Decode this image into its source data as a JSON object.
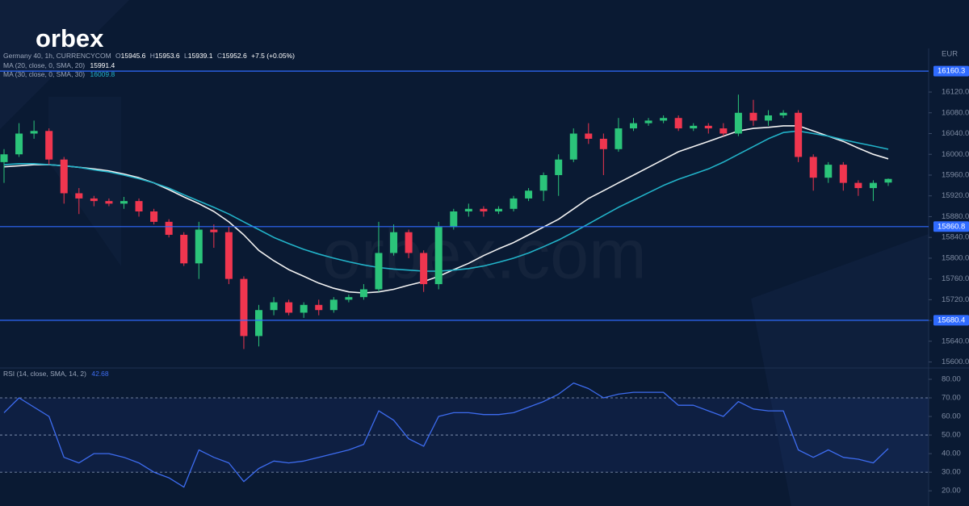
{
  "logo": "orbex",
  "watermark": "orbex.com",
  "chart_data": [
    {
      "type": "candlestick",
      "title": "Germany 40, 1h, CURRENCYCOM",
      "ohlc_keys": [
        "O",
        "H",
        "L",
        "C"
      ],
      "change": "+7.5 (+0.05%)",
      "currency": "EUR",
      "up_color": "#2bc47a",
      "down_color": "#f0364f",
      "open": [
        15985,
        16000,
        16040,
        16045,
        15990,
        15925,
        15915,
        15910,
        15905,
        15910,
        15890,
        15870,
        15845,
        15790,
        15855,
        15850,
        15760,
        15650,
        15700,
        15715,
        15695,
        15710,
        15700,
        15720,
        15725,
        15740,
        15810,
        15850,
        15810,
        15750,
        15860,
        15890,
        15895,
        15890,
        15895,
        15915,
        15930,
        15960,
        15990,
        16040,
        16030,
        16010,
        16050,
        16060,
        16065,
        16070,
        16050,
        16055,
        16050,
        16040,
        16080,
        16065,
        16075,
        16080,
        15995,
        15955,
        15980,
        15945,
        15935,
        15945.6
      ],
      "high": [
        16010,
        16060,
        16065,
        16050,
        15995,
        15935,
        15920,
        15915,
        15918,
        15915,
        15895,
        15875,
        15850,
        15870,
        15865,
        15860,
        15765,
        15710,
        15725,
        15720,
        15715,
        15720,
        15725,
        15730,
        15750,
        15870,
        15865,
        15855,
        15815,
        15870,
        15895,
        15905,
        15900,
        15900,
        15920,
        15935,
        15965,
        16000,
        16050,
        16060,
        16040,
        16070,
        16070,
        16070,
        16075,
        16075,
        16060,
        16060,
        16060,
        16115,
        16105,
        16085,
        16085,
        16085,
        16000,
        15985,
        15985,
        15950,
        15950,
        15953.6
      ],
      "low": [
        15945,
        15995,
        16030,
        15980,
        15905,
        15885,
        15900,
        15900,
        15895,
        15880,
        15865,
        15840,
        15785,
        15760,
        15820,
        15750,
        15625,
        15630,
        15690,
        15690,
        15685,
        15690,
        15695,
        15715,
        15720,
        15735,
        15805,
        15800,
        15735,
        15740,
        15855,
        15880,
        15880,
        15885,
        15890,
        15910,
        15910,
        15920,
        15985,
        16020,
        15960,
        16005,
        16045,
        16055,
        16060,
        16045,
        16045,
        16040,
        16035,
        16035,
        16055,
        16055,
        16070,
        15985,
        15930,
        15945,
        15930,
        15920,
        15910,
        15939.1
      ],
      "close": [
        16000,
        16040,
        16045,
        15990,
        15925,
        15915,
        15910,
        15905,
        15910,
        15890,
        15870,
        15845,
        15790,
        15855,
        15850,
        15760,
        15650,
        15700,
        15715,
        15695,
        15710,
        15700,
        15720,
        15725,
        15740,
        15810,
        15850,
        15810,
        15750,
        15860,
        15890,
        15895,
        15890,
        15895,
        15915,
        15930,
        15960,
        15990,
        16040,
        16030,
        16010,
        16050,
        16060,
        16065,
        16070,
        16050,
        16055,
        16050,
        16040,
        16080,
        16065,
        16075,
        16080,
        15995,
        15955,
        15980,
        15945,
        15935,
        15945,
        15952.6
      ],
      "series": [
        {
          "name": "MA (20, close, 0, SMA, 20)",
          "color": "#f2f2f2",
          "values": [
            15976,
            15978,
            15980,
            15980,
            15978,
            15975,
            15972,
            15968,
            15962,
            15955,
            15945,
            15932,
            15918,
            15905,
            15890,
            15870,
            15845,
            15815,
            15795,
            15778,
            15765,
            15752,
            15742,
            15735,
            15733,
            15735,
            15740,
            15748,
            15755,
            15765,
            15778,
            15790,
            15805,
            15818,
            15830,
            15845,
            15860,
            15875,
            15895,
            15915,
            15930,
            15945,
            15960,
            15975,
            15990,
            16005,
            16015,
            16025,
            16035,
            16045,
            16050,
            16052,
            16055,
            16055,
            16045,
            16035,
            16025,
            16012,
            16000,
            15991.4
          ]
        },
        {
          "name": "MA (30, close, 0, SMA, 30)",
          "color": "#22b3c9",
          "values": [
            15980,
            15982,
            15982,
            15980,
            15978,
            15975,
            15970,
            15966,
            15960,
            15953,
            15945,
            15935,
            15922,
            15910,
            15898,
            15885,
            15870,
            15855,
            15840,
            15828,
            15817,
            15808,
            15800,
            15793,
            15787,
            15782,
            15779,
            15777,
            15775,
            15775,
            15777,
            15780,
            15785,
            15792,
            15800,
            15810,
            15822,
            15835,
            15850,
            15866,
            15882,
            15898,
            15912,
            15926,
            15940,
            15952,
            15962,
            15972,
            15985,
            16000,
            16015,
            16030,
            16042,
            16045,
            16040,
            16035,
            16028,
            16022,
            16016,
            16009.8
          ]
        }
      ],
      "levels": [
        16160.3,
        15860.8,
        15680.4
      ],
      "level_color": "#2f6bff",
      "ylim": [
        15590,
        16204
      ],
      "yticks": [
        {
          "value": 16120,
          "label": "16120.0"
        },
        {
          "value": 16080,
          "label": "16080.0"
        },
        {
          "value": 16040,
          "label": "16040.0"
        },
        {
          "value": 16000,
          "label": "16000.0"
        },
        {
          "value": 15960,
          "label": "15960.0"
        },
        {
          "value": 15920,
          "label": "15920.0"
        },
        {
          "value": 15880,
          "label": "15880.0"
        },
        {
          "value": 15840,
          "label": "15840.0"
        },
        {
          "value": 15800,
          "label": "15800.0"
        },
        {
          "value": 15760,
          "label": "15760.0"
        },
        {
          "value": 15720,
          "label": "15720.0"
        },
        {
          "value": 15680,
          "label": "15680.0"
        },
        {
          "value": 15640,
          "label": "15640.0"
        },
        {
          "value": 15600,
          "label": "15600.0"
        }
      ]
    },
    {
      "type": "line",
      "series": [
        {
          "name": "RSI (14, close, SMA, 14, 2)",
          "color": "#3d6cf0",
          "values": [
            62,
            70,
            65,
            60,
            38,
            35,
            40,
            40,
            38,
            35,
            30,
            27,
            22,
            42,
            38,
            35,
            25,
            32,
            36,
            35,
            36,
            38,
            40,
            42,
            45,
            63,
            58,
            48,
            44,
            60,
            62,
            62,
            61,
            61,
            62,
            65,
            68,
            72,
            78,
            75,
            70,
            72,
            73,
            73,
            73,
            66,
            66,
            63,
            60,
            68,
            64,
            63,
            63,
            42,
            38,
            42,
            38,
            37,
            35,
            42.68
          ]
        }
      ],
      "levels": [
        70,
        50,
        30
      ],
      "ylim": [
        14,
        85.2
      ],
      "yticks": [
        {
          "value": 80,
          "label": "80.00"
        },
        {
          "value": 70,
          "label": "70.00"
        },
        {
          "value": 60,
          "label": "60.00"
        },
        {
          "value": 50,
          "label": "50.00"
        },
        {
          "value": 40,
          "label": "40.00"
        },
        {
          "value": 30,
          "label": "30.00"
        },
        {
          "value": 20,
          "label": "20.00"
        }
      ]
    }
  ]
}
